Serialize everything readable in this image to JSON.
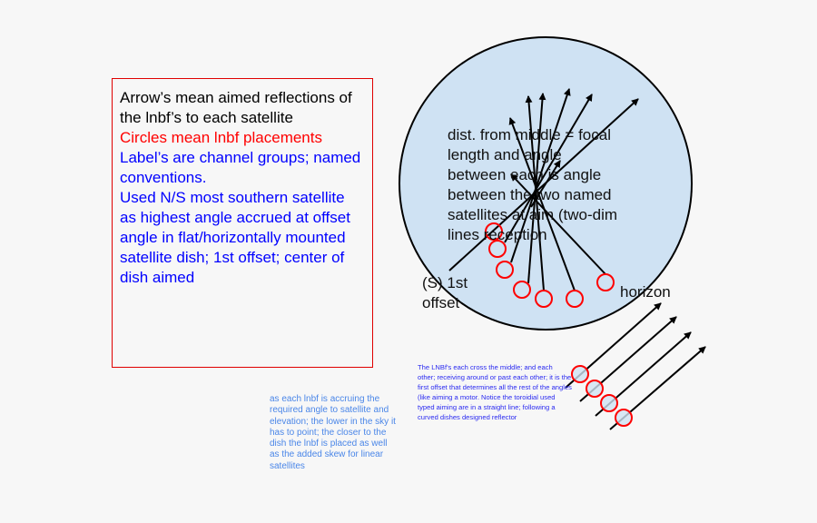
{
  "legend_box": {
    "lines": [
      {
        "text": "Arrow’s mean aimed reflections of the lnbf’s to each satellite",
        "color": "#000000"
      },
      {
        "text": "Circles mean lnbf placements",
        "color": "#ff0000"
      },
      {
        "text": "Label’s are channel groups; named conventions.",
        "color": "#0000ff"
      },
      {
        "text": "Used N/S most southern satellite as highest angle accrued at offset angle in flat/horizontally mounted satellite dish; 1st offset; center of dish aimed",
        "color": "#0000ff"
      }
    ]
  },
  "dish": {
    "center_text": "dist. from middle = focal\nlength and angle\nbetween each is angle\nbetween the two named\nsatellites at aim (two-dim\nlines   reception",
    "offset_label": "(S) 1st\noffset",
    "horizon_label": "horizon",
    "fill": "#cfe2f3",
    "circle_color": "#ff0000"
  },
  "notes": {
    "lnbf_cross": "The LNBf's each cross the middle; and each other; receiving around or past each other; it is the first offset that determines all the rest of the angles (like aiming a motor. Notice the toroidial used typed aiming are in a straight line; following a curved dishes designed reflector",
    "accruing": "as each lnbf is accruing the required angle to satellite and elevation; the lower in the sky it has to point; the closer to the dish the lnbf is placed as well as the added skew for linear satellites"
  }
}
